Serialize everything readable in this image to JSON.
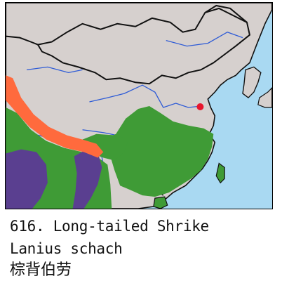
{
  "map": {
    "colors": {
      "sea": "#a9d9f2",
      "land": "#d6d0ce",
      "range_green": "#3f9b36",
      "range_purple": "#5a3f90",
      "range_orange": "#ff6a3d",
      "marker_red": "#e8152c",
      "border": "#111111",
      "river": "#2e5bd6"
    },
    "legend_categories": [
      "resident range (green)",
      "alternate range (purple)",
      "breeding range (orange)",
      "location marker (red)"
    ]
  },
  "caption": {
    "line1": "616. Long-tailed Shrike",
    "line2": "Lanius schach",
    "line3": "棕背伯劳"
  }
}
